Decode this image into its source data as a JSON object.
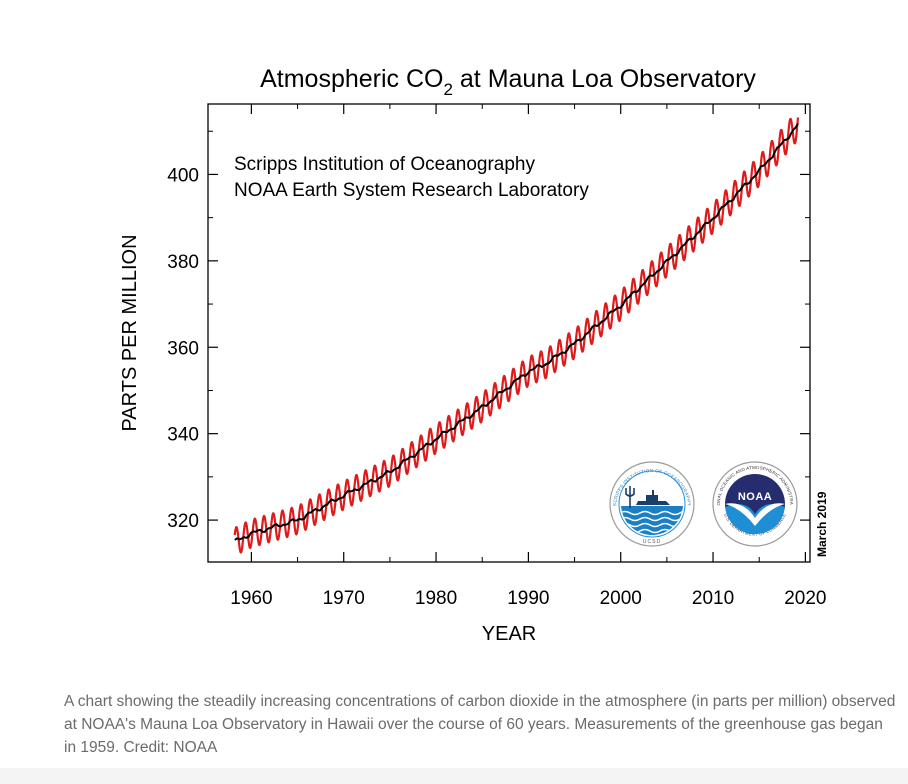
{
  "chart_data": {
    "type": "line",
    "title": {
      "main": "Atmospheric CO",
      "subscript": "2",
      "rest": " at Mauna Loa Observatory"
    },
    "annotation_lines": [
      "Scripps Institution of Oceanography",
      "NOAA Earth System Research Laboratory"
    ],
    "date_note": "March 2019",
    "xlabel": "YEAR",
    "ylabel": "PARTS PER MILLION",
    "xlim": [
      1955.3,
      2020.5
    ],
    "ylim": [
      310.3,
      416.3
    ],
    "x_ticks": [
      1960,
      1970,
      1980,
      1990,
      2000,
      2010,
      2020
    ],
    "x_tick_labels": [
      "1960",
      "1970",
      "1980",
      "1990",
      "2000",
      "2010",
      "2020"
    ],
    "y_ticks": [
      320,
      340,
      360,
      380,
      400
    ],
    "y_tick_labels": [
      "320",
      "340",
      "360",
      "380",
      "400"
    ],
    "grid": false,
    "series": [
      {
        "kind": "monthly",
        "color": "#dd1b1b",
        "seasonal_amplitude_ppm": 3.2,
        "start_year": 1958.2,
        "end_year": 2019.2
      },
      {
        "kind": "trend",
        "color": "#000000",
        "x": [
          1958.2,
          1960,
          1965,
          1970,
          1975,
          1980,
          1985,
          1990,
          1992,
          1995,
          2000,
          2005,
          2010,
          2015,
          2019.2
        ],
        "y": [
          315.0,
          316.9,
          320.0,
          325.7,
          331.1,
          338.8,
          346.1,
          354.4,
          356.3,
          360.8,
          369.7,
          379.8,
          389.9,
          400.8,
          411.5
        ]
      }
    ]
  },
  "logos": [
    {
      "name": "scripps-ucsd-logo",
      "ring_text": "SCRIPPS INSTITUTION OF OCEANOGRAPHY",
      "bottom_text": "UCSD"
    },
    {
      "name": "noaa-logo",
      "center_text": "NOAA",
      "ring_text_top": "NATIONAL OCEANIC AND ATMOSPHERIC ADMINISTRATION",
      "ring_text_bottom": "U.S. DEPARTMENT OF COMMERCE"
    }
  ],
  "caption": "A chart showing the steadily increasing concentrations of carbon dioxide in the atmosphere (in parts per million) observed at NOAA's Mauna Loa Observatory in Hawaii over the course of 60 years. Measurements of the greenhouse gas began in 1959. Credit: NOAA",
  "colors": {
    "seasonal": "#dd1b1b",
    "trend": "#000000",
    "ocean": "#1b7fc4",
    "noaa_navy": "#262d6f",
    "caption_text": "#6b6b6b"
  }
}
